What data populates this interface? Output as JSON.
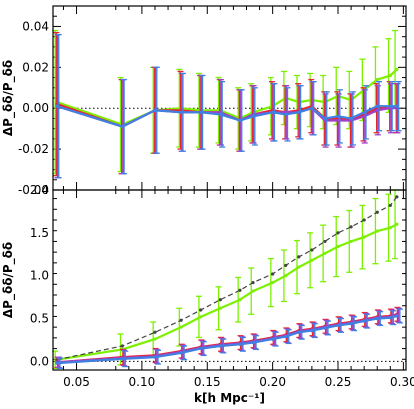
{
  "chart_data": [
    {
      "type": "line",
      "panel": "top",
      "ylabel": "ΔP_δδ/P_δδ",
      "ylim": [
        -0.04,
        0.05
      ],
      "yticks": [
        -0.04,
        -0.02,
        0.0,
        0.02,
        0.04
      ],
      "ytick_labels": [
        "-0.04",
        "-0.02",
        "0.00",
        "0.02",
        "0.04"
      ],
      "xlim": [
        0.032,
        0.302
      ],
      "reference_line": 0,
      "x": [
        0.035,
        0.085,
        0.11,
        0.13,
        0.145,
        0.16,
        0.175,
        0.185,
        0.2,
        0.21,
        0.22,
        0.23,
        0.24,
        0.25,
        0.26,
        0.27,
        0.28,
        0.29,
        0.295
      ],
      "series": [
        {
          "color": "#7cf000",
          "values": [
            0.003,
            -0.008,
            -0.001,
            0.0,
            -0.001,
            -0.001,
            -0.005,
            -0.002,
            0.001,
            0.005,
            0.003,
            0.004,
            0.003,
            0.006,
            0.004,
            0.009,
            0.014,
            0.016,
            0.019
          ],
          "errors": [
            0.035,
            0.023,
            0.021,
            0.019,
            0.018,
            0.016,
            0.015,
            0.014,
            0.014,
            0.013,
            0.013,
            0.013,
            0.013,
            0.014,
            0.014,
            0.015,
            0.016,
            0.018,
            0.019
          ]
        },
        {
          "color": "#e8262e",
          "values": [
            0.002,
            -0.009,
            -0.001,
            -0.001,
            -0.002,
            -0.002,
            -0.006,
            -0.003,
            -0.001,
            -0.002,
            -0.001,
            0.001,
            -0.005,
            -0.005,
            -0.006,
            -0.003,
            0.0,
            0.001,
            0.0
          ],
          "errors": [
            0.035,
            0.023,
            0.021,
            0.019,
            0.018,
            0.016,
            0.015,
            0.014,
            0.014,
            0.013,
            0.013,
            0.013,
            0.013,
            0.013,
            0.013,
            0.013,
            0.012,
            0.012,
            0.012
          ]
        },
        {
          "color": "#a040c8",
          "values": [
            0.001,
            -0.009,
            -0.001,
            -0.002,
            -0.002,
            -0.002,
            -0.006,
            -0.003,
            -0.002,
            -0.002,
            -0.002,
            0.0,
            -0.006,
            -0.006,
            -0.006,
            -0.004,
            -0.001,
            0.0,
            0.0
          ],
          "errors": [
            0.035,
            0.023,
            0.021,
            0.019,
            0.018,
            0.016,
            0.015,
            0.014,
            0.014,
            0.013,
            0.013,
            0.013,
            0.013,
            0.013,
            0.013,
            0.013,
            0.012,
            0.012,
            0.012
          ]
        },
        {
          "color": "#3f80e0",
          "values": [
            0.001,
            -0.009,
            -0.001,
            -0.002,
            -0.002,
            -0.003,
            -0.006,
            -0.004,
            -0.002,
            -0.003,
            -0.002,
            0.0,
            -0.005,
            -0.004,
            -0.005,
            -0.002,
            0.001,
            0.001,
            0.001
          ],
          "errors": [
            0.035,
            0.023,
            0.021,
            0.019,
            0.018,
            0.016,
            0.015,
            0.014,
            0.014,
            0.013,
            0.013,
            0.013,
            0.013,
            0.013,
            0.013,
            0.013,
            0.012,
            0.012,
            0.012
          ]
        }
      ]
    },
    {
      "type": "line",
      "panel": "bottom",
      "xlabel": "k[h Mpc⁻¹]",
      "ylabel": "ΔP_δδ/P_δδ",
      "ylim": [
        -0.1,
        2.0
      ],
      "yticks": [
        0.0,
        0.5,
        1.0,
        1.5,
        2.0
      ],
      "ytick_labels": [
        "0.0",
        "0.5",
        "1.0",
        "1.5",
        "2.0"
      ],
      "xlim": [
        0.032,
        0.302
      ],
      "xticks": [
        0.05,
        0.1,
        0.15,
        0.2,
        0.25,
        0.3
      ],
      "xtick_labels": [
        "0.05",
        "0.10",
        "0.15",
        "0.20",
        "0.25",
        "0.30"
      ],
      "reference_line": 0,
      "x": [
        0.035,
        0.085,
        0.11,
        0.13,
        0.145,
        0.16,
        0.175,
        0.185,
        0.2,
        0.21,
        0.22,
        0.23,
        0.24,
        0.25,
        0.26,
        0.27,
        0.28,
        0.29,
        0.295
      ],
      "series": [
        {
          "color": "#7cf000",
          "style": "solid",
          "values": [
            0.02,
            0.14,
            0.26,
            0.4,
            0.52,
            0.62,
            0.72,
            0.82,
            0.92,
            1.0,
            1.1,
            1.18,
            1.26,
            1.34,
            1.4,
            1.45,
            1.52,
            1.56,
            1.6
          ],
          "errors": [
            0.1,
            0.18,
            0.2,
            0.22,
            0.24,
            0.25,
            0.26,
            0.27,
            0.28,
            0.3,
            0.31,
            0.32,
            0.33,
            0.35,
            0.36,
            0.37,
            0.38,
            0.39,
            0.4
          ]
        },
        {
          "color": "#444444",
          "style": "dashed",
          "values": [
            0.02,
            0.18,
            0.34,
            0.48,
            0.6,
            0.72,
            0.83,
            0.92,
            1.02,
            1.12,
            1.22,
            1.3,
            1.4,
            1.5,
            1.57,
            1.65,
            1.74,
            1.82,
            1.92
          ],
          "errors": []
        },
        {
          "color": "#e8262e",
          "style": "solid",
          "values": [
            -0.01,
            0.05,
            0.07,
            0.12,
            0.17,
            0.2,
            0.22,
            0.24,
            0.28,
            0.31,
            0.36,
            0.38,
            0.41,
            0.44,
            0.46,
            0.49,
            0.52,
            0.53,
            0.55
          ],
          "errors": [
            0.06,
            0.09,
            0.08,
            0.08,
            0.08,
            0.08,
            0.08,
            0.08,
            0.08,
            0.08,
            0.08,
            0.08,
            0.08,
            0.08,
            0.08,
            0.08,
            0.08,
            0.08,
            0.08
          ]
        },
        {
          "color": "#a040c8",
          "style": "solid",
          "values": [
            -0.01,
            0.04,
            0.06,
            0.11,
            0.16,
            0.19,
            0.21,
            0.23,
            0.27,
            0.3,
            0.35,
            0.37,
            0.4,
            0.43,
            0.45,
            0.48,
            0.51,
            0.52,
            0.54
          ],
          "errors": [
            0.06,
            0.09,
            0.08,
            0.08,
            0.08,
            0.08,
            0.08,
            0.08,
            0.08,
            0.08,
            0.08,
            0.08,
            0.08,
            0.08,
            0.08,
            0.08,
            0.08,
            0.08,
            0.08
          ]
        },
        {
          "color": "#3f80e0",
          "style": "solid",
          "values": [
            -0.02,
            0.03,
            0.05,
            0.1,
            0.15,
            0.18,
            0.2,
            0.22,
            0.26,
            0.29,
            0.34,
            0.36,
            0.39,
            0.42,
            0.44,
            0.47,
            0.5,
            0.51,
            0.53
          ],
          "errors": [
            0.06,
            0.09,
            0.08,
            0.08,
            0.08,
            0.08,
            0.08,
            0.08,
            0.08,
            0.08,
            0.08,
            0.08,
            0.08,
            0.08,
            0.08,
            0.08,
            0.08,
            0.08,
            0.08
          ]
        }
      ]
    }
  ]
}
